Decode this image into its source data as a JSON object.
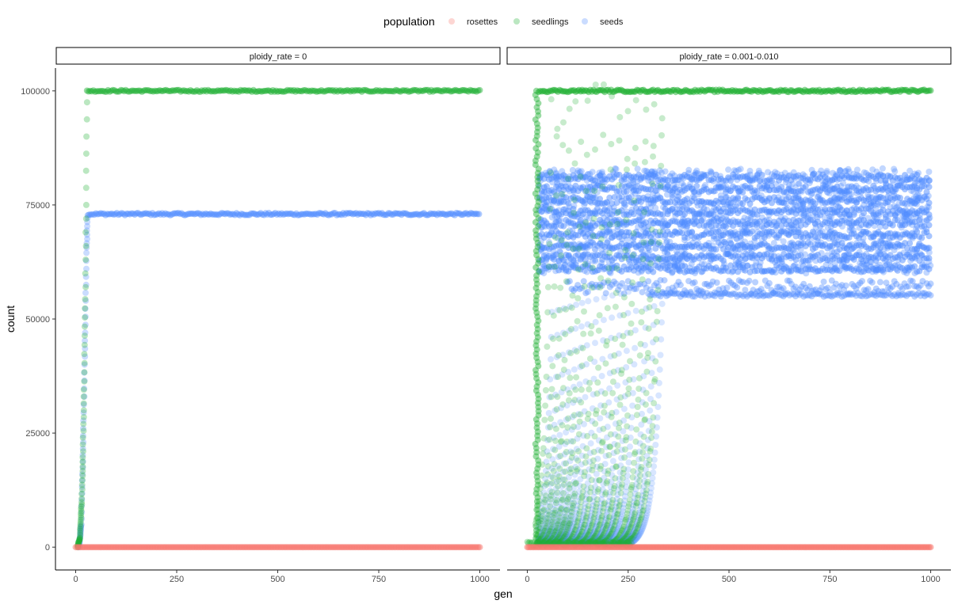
{
  "chart_data": {
    "type": "scatter",
    "xlabel": "gen",
    "ylabel": "count",
    "xlim": [
      -50,
      1050
    ],
    "ylim": [
      -5000,
      105000
    ],
    "x_ticks": [
      0,
      250,
      500,
      750,
      1000
    ],
    "x_tick_labels": [
      "0",
      "250",
      "500",
      "750",
      "1000"
    ],
    "y_ticks": [
      0,
      25000,
      50000,
      75000,
      100000
    ],
    "y_tick_labels": [
      "0",
      "25000",
      "50000",
      "75000",
      "100000"
    ],
    "grid": false,
    "legend": {
      "title": "population",
      "position": "top",
      "entries": [
        {
          "name": "rosettes",
          "color": "#F8766D"
        },
        {
          "name": "seedlings",
          "color": "#1FB032"
        },
        {
          "name": "seeds",
          "color": "#4F8BFF"
        }
      ]
    },
    "facets": [
      {
        "label": "ploidy_rate = 0",
        "series": [
          {
            "name": "rosettes",
            "color": "#F8766D",
            "description": "flat at 0 for gen 0-1000",
            "points": [
              [
                0,
                0
              ],
              [
                250,
                0
              ],
              [
                500,
                0
              ],
              [
                750,
                0
              ],
              [
                1000,
                0
              ]
            ]
          },
          {
            "name": "seedlings",
            "color": "#1FB032",
            "description": "rises steeply gen ~5-28, then flat at 100000",
            "points": [
              [
                5,
                0
              ],
              [
                10,
                2000
              ],
              [
                15,
                10000
              ],
              [
                18,
                20000
              ],
              [
                21,
                35000
              ],
              [
                24,
                55000
              ],
              [
                26,
                75000
              ],
              [
                28,
                100000
              ],
              [
                500,
                100000
              ],
              [
                1000,
                100000
              ]
            ]
          },
          {
            "name": "seeds",
            "color": "#4F8BFF",
            "description": "rises steeply gen ~8-30, then flat at about 73000",
            "points": [
              [
                8,
                0
              ],
              [
                14,
                5000
              ],
              [
                19,
                25000
              ],
              [
                23,
                45000
              ],
              [
                27,
                65000
              ],
              [
                30,
                73000
              ],
              [
                500,
                73000
              ],
              [
                1000,
                73000
              ]
            ]
          }
        ]
      },
      {
        "label": "ploidy_rate = 0.001-0.010",
        "series": [
          {
            "name": "rosettes",
            "color": "#F8766D",
            "description": "flat at 0 for gen 0-1000",
            "points": [
              [
                0,
                0
              ],
              [
                250,
                0
              ],
              [
                500,
                0
              ],
              [
                750,
                0
              ],
              [
                1000,
                0
              ]
            ]
          },
          {
            "name": "seedlings",
            "color": "#1FB032",
            "description": "saturates at 100000 from gen ~28 to 1000; many replicate exponential rises with onset from gen ~20 to ~300",
            "points": [
              [
                28,
                100000
              ],
              [
                500,
                100000
              ],
              [
                1000,
                100000
              ]
            ]
          },
          {
            "name": "seeds",
            "color": "#4F8BFF",
            "description": "dense band between about 60000 and 83000 from gen ~30 to 1000, with further levels near 56000-59000 and 55000",
            "points": [
              [
                30,
                60000
              ],
              [
                30,
                83000
              ],
              [
                1000,
                60000
              ],
              [
                1000,
                83000
              ]
            ],
            "band_ranges": [
              [
                60000,
                83000
              ],
              [
                56000,
                59000
              ],
              [
                55000,
                56000
              ]
            ]
          }
        ]
      }
    ]
  }
}
